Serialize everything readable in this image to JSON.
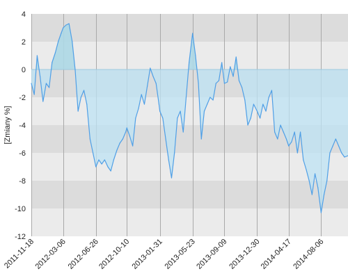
{
  "chart_data": {
    "type": "area",
    "ylabel": "[Zmiany %]",
    "ylim": [
      -12,
      4
    ],
    "y_ticks": [
      4,
      2,
      0,
      -2,
      -4,
      -6,
      -8,
      -10,
      -12
    ],
    "x_range": [
      "2011-11-18",
      "2014-11-06"
    ],
    "x_ticks": [
      "2011-11-18",
      "2012-03-06",
      "2012-06-26",
      "2012-10-10",
      "2013-01-31",
      "2013-05-23",
      "2013-09-09",
      "2013-12-30",
      "2014-04-17",
      "2014-08-06"
    ],
    "grid": true,
    "band_colors": [
      "#dcdcdc",
      "#ebebeb"
    ],
    "line_color": "#4f9fe6",
    "fill_positive": "#add8e6",
    "fill_negative": "#bde3f4",
    "series": [
      {
        "x": [
          "2011-11-18",
          "2011-11-28",
          "2011-12-08",
          "2011-12-18",
          "2011-12-28",
          "2012-01-08",
          "2012-01-18",
          "2012-01-28",
          "2012-02-08",
          "2012-02-18",
          "2012-02-28",
          "2012-03-06",
          "2012-03-16",
          "2012-03-26",
          "2012-04-06",
          "2012-04-16",
          "2012-04-26",
          "2012-05-06",
          "2012-05-16",
          "2012-05-26",
          "2012-06-06",
          "2012-06-16",
          "2012-06-26",
          "2012-07-06",
          "2012-07-16",
          "2012-07-26",
          "2012-08-06",
          "2012-08-16",
          "2012-08-26",
          "2012-09-06",
          "2012-09-16",
          "2012-09-26",
          "2012-10-06",
          "2012-10-10",
          "2012-10-20",
          "2012-10-30",
          "2012-11-09",
          "2012-11-19",
          "2012-11-29",
          "2012-12-09",
          "2012-12-19",
          "2012-12-29",
          "2013-01-08",
          "2013-01-18",
          "2013-01-28",
          "2013-01-31",
          "2013-02-10",
          "2013-02-20",
          "2013-03-02",
          "2013-03-12",
          "2013-03-22",
          "2013-04-01",
          "2013-04-11",
          "2013-04-21",
          "2013-05-01",
          "2013-05-11",
          "2013-05-23",
          "2013-06-02",
          "2013-06-12",
          "2013-06-22",
          "2013-07-02",
          "2013-07-12",
          "2013-07-22",
          "2013-08-01",
          "2013-08-11",
          "2013-08-21",
          "2013-08-31",
          "2013-09-09",
          "2013-09-19",
          "2013-09-29",
          "2013-10-09",
          "2013-10-19",
          "2013-10-29",
          "2013-11-08",
          "2013-11-18",
          "2013-11-28",
          "2013-12-08",
          "2013-12-18",
          "2013-12-30",
          "2014-01-09",
          "2014-01-19",
          "2014-01-29",
          "2014-02-08",
          "2014-02-18",
          "2014-02-28",
          "2014-03-10",
          "2014-03-20",
          "2014-03-30",
          "2014-04-09",
          "2014-04-17",
          "2014-04-27",
          "2014-05-07",
          "2014-05-17",
          "2014-05-27",
          "2014-06-06",
          "2014-06-16",
          "2014-06-26",
          "2014-07-06",
          "2014-07-16",
          "2014-07-26",
          "2014-08-06",
          "2014-08-16",
          "2014-08-26",
          "2014-09-05",
          "2014-09-15",
          "2014-09-25",
          "2014-10-05",
          "2014-10-15",
          "2014-10-25",
          "2014-11-06"
        ],
        "y": [
          -1.0,
          -1.8,
          1.0,
          -0.5,
          -2.3,
          -1.0,
          -1.3,
          0.5,
          1.2,
          2.0,
          2.6,
          3.0,
          3.2,
          3.3,
          2.0,
          0.0,
          -3.0,
          -2.0,
          -1.5,
          -2.5,
          -5.0,
          -6.0,
          -7.0,
          -6.5,
          -6.8,
          -6.5,
          -7.0,
          -7.3,
          -6.5,
          -5.8,
          -5.3,
          -5.0,
          -4.5,
          -4.2,
          -4.8,
          -5.5,
          -3.5,
          -2.8,
          -1.8,
          -2.5,
          -1.2,
          0.1,
          -0.5,
          -1.0,
          -2.5,
          -3.0,
          -3.5,
          -5.0,
          -6.5,
          -7.8,
          -6.0,
          -3.5,
          -3.0,
          -4.5,
          -2.0,
          0.5,
          2.6,
          1.0,
          -1.0,
          -5.0,
          -3.0,
          -2.5,
          -2.0,
          -2.2,
          -1.0,
          -0.8,
          0.5,
          -1.0,
          -0.9,
          0.2,
          -0.5,
          0.9,
          -0.8,
          -1.3,
          -2.2,
          -4.0,
          -3.5,
          -2.5,
          -3.0,
          -3.5,
          -2.5,
          -3.0,
          -2.0,
          -1.5,
          -4.5,
          -5.0,
          -4.0,
          -4.5,
          -5.0,
          -5.5,
          -5.2,
          -4.5,
          -6.0,
          -4.5,
          -6.5,
          -7.2,
          -8.0,
          -9.0,
          -7.5,
          -8.5,
          -10.3,
          -9.0,
          -8.0,
          -6.0,
          -5.5,
          -5.0,
          -5.5,
          -6.0,
          -6.3,
          -6.2
        ]
      }
    ]
  }
}
